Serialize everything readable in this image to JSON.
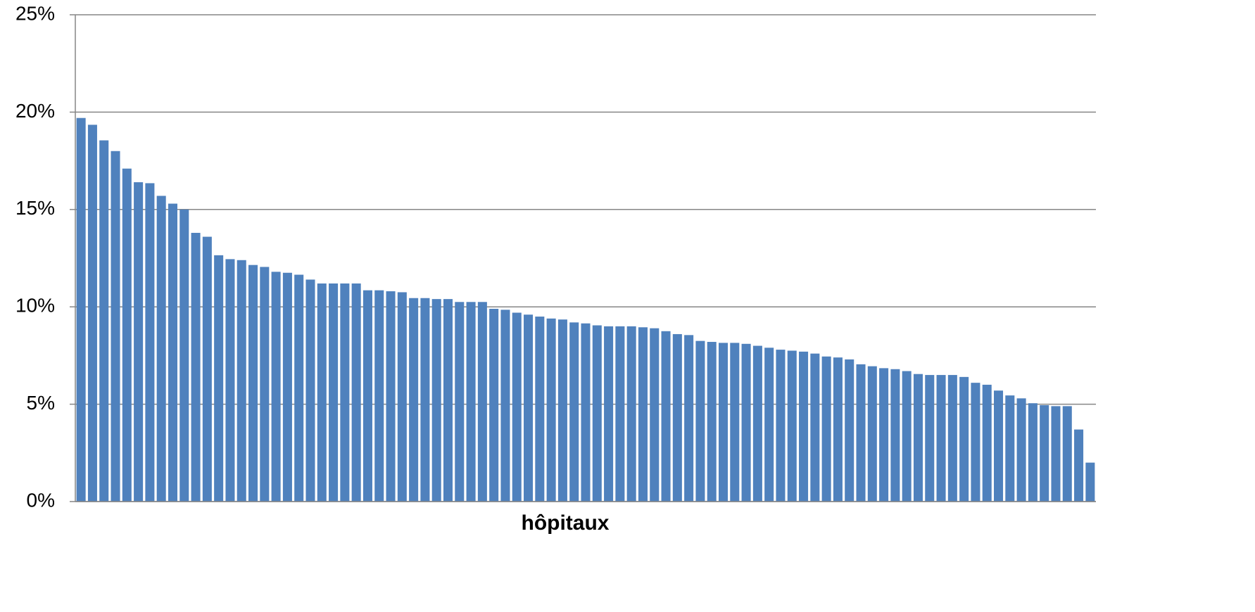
{
  "chart_data": {
    "type": "bar",
    "x_label": "hôpitaux",
    "categories": [
      null,
      null,
      null,
      null,
      null,
      null,
      null,
      null,
      null,
      null,
      null,
      null,
      null,
      null,
      null,
      null,
      null,
      null,
      null,
      null,
      null,
      null,
      null,
      null,
      null,
      null,
      null,
      null,
      null,
      null,
      null,
      null,
      null,
      null,
      null,
      null,
      null,
      null,
      null,
      null,
      null,
      null,
      null,
      null,
      null,
      null,
      null,
      null,
      null,
      null,
      null,
      null,
      null,
      null,
      null,
      null,
      null,
      null,
      null,
      null,
      null,
      null,
      null,
      null,
      null,
      null,
      null,
      null,
      null,
      null,
      null,
      null,
      null,
      null,
      null,
      null,
      null,
      null,
      null,
      null,
      null,
      null,
      null,
      null,
      null,
      null,
      null,
      null,
      null
    ],
    "values": [
      19.7,
      19.35,
      18.55,
      18.0,
      17.1,
      16.4,
      16.35,
      15.7,
      15.3,
      15.0,
      13.8,
      13.6,
      12.65,
      12.45,
      12.4,
      12.15,
      12.05,
      11.8,
      11.75,
      11.65,
      11.4,
      11.2,
      11.2,
      11.2,
      11.2,
      10.85,
      10.85,
      10.8,
      10.75,
      10.45,
      10.45,
      10.4,
      10.4,
      10.25,
      10.25,
      10.25,
      9.9,
      9.85,
      9.7,
      9.6,
      9.5,
      9.4,
      9.35,
      9.2,
      9.15,
      9.05,
      9.0,
      9.0,
      9.0,
      8.95,
      8.9,
      8.75,
      8.6,
      8.55,
      8.25,
      8.2,
      8.15,
      8.15,
      8.1,
      8.0,
      7.9,
      7.8,
      7.75,
      7.7,
      7.6,
      7.45,
      7.4,
      7.3,
      7.05,
      6.95,
      6.85,
      6.8,
      6.7,
      6.55,
      6.5,
      6.5,
      6.5,
      6.4,
      6.1,
      6.0,
      5.7,
      5.45,
      5.3,
      5.05,
      4.95,
      4.9,
      4.9,
      3.7,
      2.0
    ],
    "color": "#4f81bd",
    "ylim": [
      0,
      25
    ],
    "yticks": [
      {
        "value": 0,
        "label": "0%"
      },
      {
        "value": 5,
        "label": "5%"
      },
      {
        "value": 10,
        "label": "10%"
      },
      {
        "value": 15,
        "label": "15%"
      },
      {
        "value": 20,
        "label": "20%"
      },
      {
        "value": 25,
        "label": "25%"
      }
    ],
    "grid": true
  }
}
